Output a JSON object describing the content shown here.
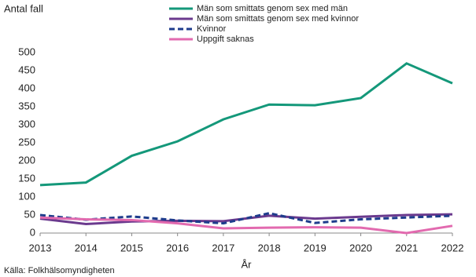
{
  "chart_data": {
    "type": "line",
    "y_label": "Antal fall",
    "x_label": "År",
    "source": "Källa: Folkhälsomyndigheten",
    "x": [
      2013,
      2014,
      2015,
      2016,
      2017,
      2018,
      2019,
      2020,
      2021,
      2022
    ],
    "xlim": [
      2013,
      2022
    ],
    "xticks": [
      2013,
      2014,
      2015,
      2016,
      2017,
      2018,
      2019,
      2020,
      2021,
      2022
    ],
    "ylim": [
      0,
      500
    ],
    "yticks": [
      0,
      50,
      100,
      150,
      200,
      250,
      300,
      350,
      400,
      450,
      500
    ],
    "grid": false,
    "legend": "top",
    "series": [
      {
        "name": "Män som smittats genom sex med män",
        "color": "#14987a",
        "dashed": false,
        "values": [
          133,
          140,
          214,
          254,
          315,
          356,
          354,
          374,
          470,
          415
        ]
      },
      {
        "name": "Män som smittats genom sex med kvinnor",
        "color": "#6b3a8e",
        "dashed": false,
        "values": [
          40,
          25,
          32,
          34,
          33,
          48,
          40,
          45,
          50,
          52
        ]
      },
      {
        "name": "Kvinnor",
        "color": "#1e3c8c",
        "dashed": true,
        "values": [
          50,
          37,
          46,
          35,
          27,
          55,
          28,
          38,
          43,
          48
        ]
      },
      {
        "name": "Uppgift saknas",
        "color": "#e26aaf",
        "dashed": false,
        "values": [
          43,
          38,
          36,
          27,
          13,
          15,
          16,
          15,
          0,
          20
        ]
      }
    ]
  }
}
